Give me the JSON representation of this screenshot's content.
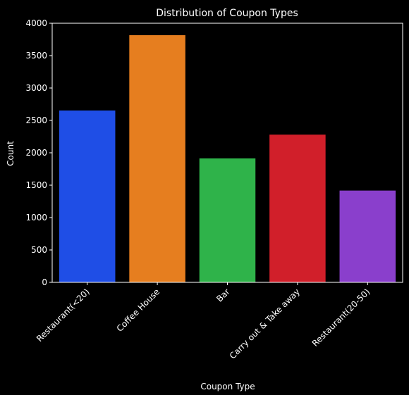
{
  "chart_data": {
    "type": "bar",
    "title": "Distribution of Coupon Types",
    "xlabel": "Coupon Type",
    "ylabel": "Count",
    "categories": [
      "Restaurant(<20)",
      "Coffee House",
      "Bar",
      "Carry out & Take away",
      "Restaurant(20-50)"
    ],
    "values": [
      2653,
      3816,
      1913,
      2280,
      1417
    ],
    "colors": [
      "#1f4ee6",
      "#e67e1f",
      "#2fb34a",
      "#d11f2a",
      "#8a3fcc"
    ],
    "ylim": [
      0,
      4000
    ],
    "yticks": [
      0,
      500,
      1000,
      1500,
      2000,
      2500,
      3000,
      3500,
      4000
    ],
    "grid": false,
    "background": "#000000",
    "text_color": "#ffffff"
  }
}
